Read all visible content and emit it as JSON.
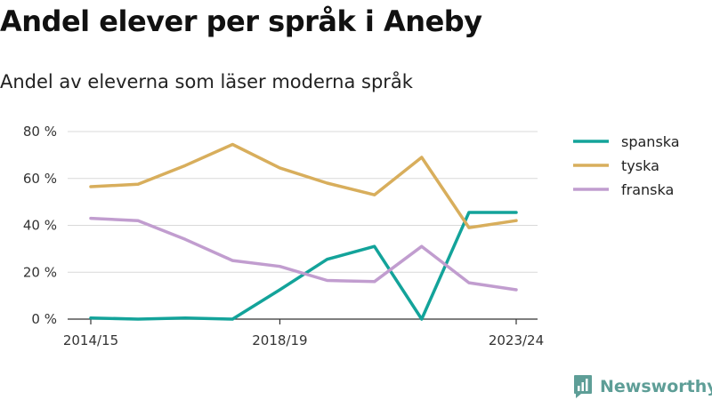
{
  "title": "Andel elever per språk i Aneby",
  "subtitle": "Andel av eleverna som läser moderna språk",
  "brand": {
    "name": "Newsworthy",
    "icon": "newsworthy-logo-icon",
    "color": "#5e9e97"
  },
  "chart_data": {
    "type": "line",
    "title": "Andel elever per språk i Aneby",
    "subtitle": "Andel av eleverna som läser moderna språk",
    "xlabel": "",
    "ylabel": "",
    "x": [
      "2014/15",
      "2015/16",
      "2016/17",
      "2017/18",
      "2018/19",
      "2019/20",
      "2020/21",
      "2021/22",
      "2022/23",
      "2023/24"
    ],
    "x_tick_labels": [
      "2014/15",
      "2018/19",
      "2023/24"
    ],
    "ylim": [
      0,
      80
    ],
    "y_ticks": [
      0,
      20,
      40,
      60,
      80
    ],
    "y_tick_labels": [
      "0 %",
      "20 %",
      "40 %",
      "60 %",
      "80 %"
    ],
    "grid": true,
    "legend_position": "right",
    "series": [
      {
        "name": "spanska",
        "color": "#13a39a",
        "values": [
          0.5,
          0,
          0.5,
          0,
          12.5,
          25.5,
          31,
          0,
          45.5,
          45.5
        ]
      },
      {
        "name": "tyska",
        "color": "#d8ae5c",
        "values": [
          56.5,
          57.5,
          65.5,
          74.5,
          64.5,
          58,
          53,
          69,
          39,
          42
        ]
      },
      {
        "name": "franska",
        "color": "#c19dcf",
        "values": [
          43,
          42,
          34,
          25,
          22.5,
          16.5,
          16,
          31,
          15.5,
          12.5
        ]
      }
    ]
  }
}
